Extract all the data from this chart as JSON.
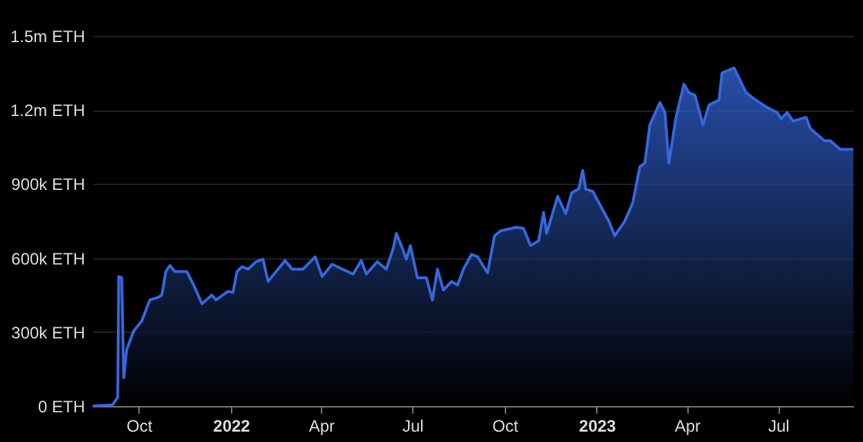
{
  "chart_data": {
    "type": "area",
    "grid": "y",
    "xlim": [
      "2021-08-16",
      "2023-09-14"
    ],
    "xticks": [
      {
        "value": "2021-10-01",
        "label": "Oct"
      },
      {
        "value": "2022-01-01",
        "label": "2022"
      },
      {
        "value": "2022-04-01",
        "label": "Apr"
      },
      {
        "value": "2022-07-01",
        "label": "Jul"
      },
      {
        "value": "2022-10-01",
        "label": "Oct"
      },
      {
        "value": "2023-01-01",
        "label": "2023"
      },
      {
        "value": "2023-04-01",
        "label": "Apr"
      },
      {
        "value": "2023-07-01",
        "label": "Jul"
      }
    ],
    "ylim": [
      0,
      1500000
    ],
    "yticks": [
      {
        "value": 0,
        "label": "0 ETH"
      },
      {
        "value": 300000,
        "label": "300k ETH"
      },
      {
        "value": 600000,
        "label": "600k ETH"
      },
      {
        "value": 900000,
        "label": "900k ETH"
      },
      {
        "value": 1200000,
        "label": "1.2m ETH"
      },
      {
        "value": 1500000,
        "label": "1.5m ETH"
      }
    ],
    "x": [
      "2021-08-16",
      "2021-09-05",
      "2021-09-10",
      "2021-09-11",
      "2021-09-14",
      "2021-09-16",
      "2021-09-19",
      "2021-09-26",
      "2021-10-04",
      "2021-10-12",
      "2021-10-20",
      "2021-10-24",
      "2021-10-28",
      "2021-11-01",
      "2021-11-06",
      "2021-11-18",
      "2021-11-26",
      "2021-12-03",
      "2021-12-13",
      "2021-12-17",
      "2021-12-29",
      "2022-01-03",
      "2022-01-07",
      "2022-01-12",
      "2022-01-18",
      "2022-01-26",
      "2022-02-02",
      "2022-02-07",
      "2022-02-15",
      "2022-02-24",
      "2022-03-03",
      "2022-03-14",
      "2022-03-26",
      "2022-04-02",
      "2022-04-12",
      "2022-04-22",
      "2022-05-03",
      "2022-05-11",
      "2022-05-16",
      "2022-05-27",
      "2022-06-05",
      "2022-06-12",
      "2022-06-15",
      "2022-06-21",
      "2022-06-25",
      "2022-06-29",
      "2022-07-06",
      "2022-07-15",
      "2022-07-21",
      "2022-07-26",
      "2022-08-01",
      "2022-08-09",
      "2022-08-15",
      "2022-08-21",
      "2022-08-29",
      "2022-09-04",
      "2022-09-14",
      "2022-09-21",
      "2022-09-27",
      "2022-10-13",
      "2022-10-20",
      "2022-10-27",
      "2022-11-04",
      "2022-11-09",
      "2022-11-12",
      "2022-11-23",
      "2022-12-01",
      "2022-12-07",
      "2022-12-14",
      "2022-12-18",
      "2022-12-21",
      "2022-12-28",
      "2023-01-03",
      "2023-01-13",
      "2023-01-19",
      "2023-01-29",
      "2023-02-06",
      "2023-02-13",
      "2023-02-18",
      "2023-02-23",
      "2023-03-05",
      "2023-03-10",
      "2023-03-14",
      "2023-03-21",
      "2023-03-29",
      "2023-04-03",
      "2023-04-09",
      "2023-04-17",
      "2023-04-23",
      "2023-05-03",
      "2023-05-06",
      "2023-05-18",
      "2023-05-30",
      "2023-06-07",
      "2023-06-20",
      "2023-06-30",
      "2023-07-04",
      "2023-07-10",
      "2023-07-16",
      "2023-07-29",
      "2023-08-02",
      "2023-08-16",
      "2023-08-22",
      "2023-09-01",
      "2023-09-14"
    ],
    "series": [
      {
        "color": "#3468e0",
        "values": [
          0,
          5000,
          35000,
          525000,
          520000,
          115000,
          230000,
          305000,
          345000,
          430000,
          440000,
          450000,
          545000,
          570000,
          545000,
          545000,
          480000,
          415000,
          450000,
          430000,
          465000,
          460000,
          545000,
          565000,
          555000,
          585000,
          595000,
          505000,
          545000,
          590000,
          555000,
          555000,
          605000,
          525000,
          575000,
          555000,
          535000,
          590000,
          535000,
          585000,
          555000,
          640000,
          700000,
          640000,
          595000,
          650000,
          520000,
          520000,
          430000,
          555000,
          470000,
          505000,
          490000,
          555000,
          615000,
          605000,
          540000,
          690000,
          710000,
          725000,
          720000,
          650000,
          670000,
          785000,
          700000,
          850000,
          780000,
          865000,
          880000,
          955000,
          880000,
          870000,
          825000,
          750000,
          690000,
          750000,
          825000,
          970000,
          985000,
          1140000,
          1230000,
          1190000,
          985000,
          1170000,
          1305000,
          1270000,
          1260000,
          1140000,
          1220000,
          1240000,
          1350000,
          1370000,
          1270000,
          1245000,
          1210000,
          1190000,
          1165000,
          1190000,
          1155000,
          1170000,
          1125000,
          1075000,
          1075000,
          1040000,
          1040000
        ]
      }
    ]
  }
}
